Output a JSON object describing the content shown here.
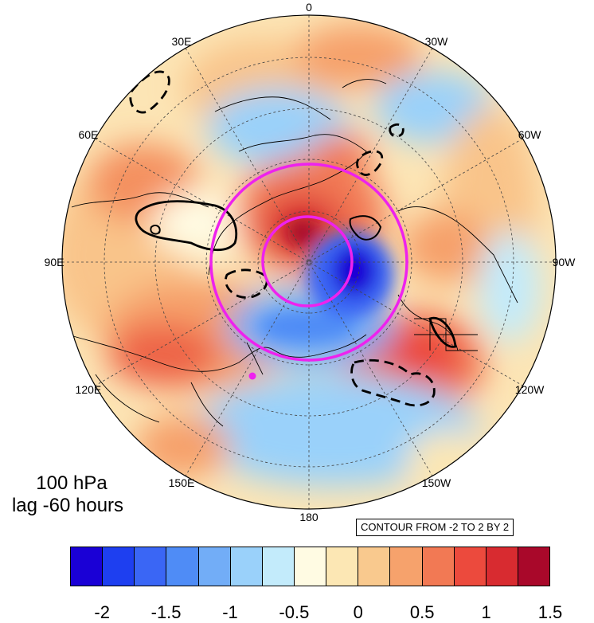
{
  "map": {
    "projection": "north polar stereographic",
    "longitude_labels": [
      "0",
      "30W",
      "60W",
      "90W",
      "120W",
      "150W",
      "180",
      "150E",
      "120E",
      "90E",
      "60E",
      "30E"
    ],
    "marker_color": "#ee22ee"
  },
  "panel": {
    "level": "100 hPa",
    "lag": "lag -60 hours"
  },
  "contour_info": "CONTOUR FROM -2 TO 2 BY 2",
  "colorbar": {
    "colors": [
      "#1a00d6",
      "#1e3ff0",
      "#3a66f5",
      "#4f8cf6",
      "#72adf7",
      "#9ad1fa",
      "#c3ebfb",
      "#fffbe3",
      "#fce7b4",
      "#f9c98e",
      "#f6a26c",
      "#f27954",
      "#ec4a3d",
      "#d82b30",
      "#a9082a"
    ],
    "tick_labels": [
      "-2",
      "-1.5",
      "-1",
      "-0.5",
      "0",
      "0.5",
      "1",
      "1.5"
    ]
  },
  "chart_data": {
    "type": "heatmap",
    "title": "",
    "level": "100 hPa",
    "lag": "lag -60 hours",
    "color_range": [
      -2.0,
      2.0
    ],
    "color_interval": 0.25,
    "contour_range": [
      -2,
      2
    ],
    "contour_interval": 2
  }
}
